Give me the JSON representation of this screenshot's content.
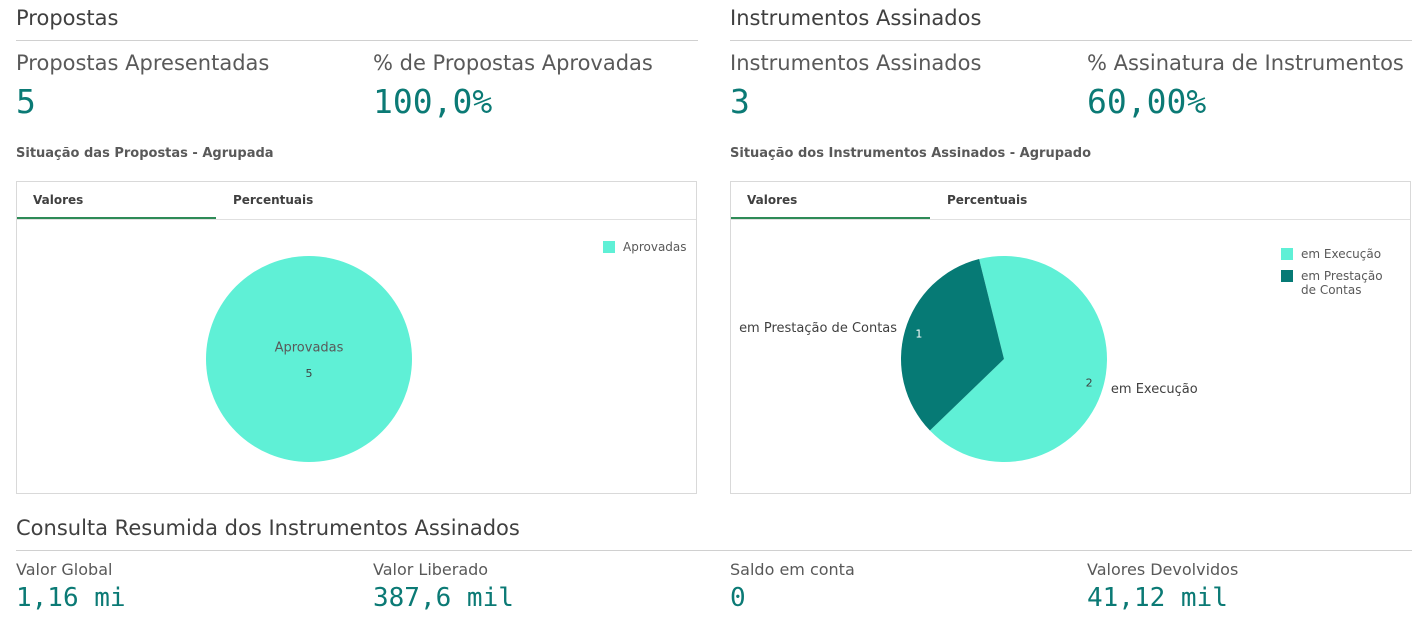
{
  "sections": [
    {
      "title": "Propostas",
      "kpis": [
        {
          "label": "Propostas Apresentadas",
          "value": "5"
        },
        {
          "label": "% de Propostas Aprovadas",
          "value": "100,0%"
        }
      ],
      "chart_title": "Situação das Propostas - Agrupada",
      "tabs": [
        "Valores",
        "Percentuais"
      ]
    },
    {
      "title": "Instrumentos Assinados",
      "kpis": [
        {
          "label": "Instrumentos Assinados",
          "value": "3"
        },
        {
          "label": "% Assinatura de Instrumentos",
          "value": "60,00%"
        }
      ],
      "chart_title": "Situação dos Instrumentos Assinados - Agrupado",
      "tabs": [
        "Valores",
        "Percentuais"
      ]
    }
  ],
  "summary": {
    "title": "Consulta Resumida dos Instrumentos Assinados",
    "items": [
      {
        "label": "Valor Global",
        "value": "1,16 mi"
      },
      {
        "label": "Valor Liberado",
        "value": "387,6 mil"
      },
      {
        "label": "Saldo em conta",
        "value": "0"
      },
      {
        "label": "Valores Devolvidos",
        "value": "41,12 mil"
      }
    ]
  },
  "chart_data": [
    {
      "type": "pie",
      "categories": [
        "Aprovadas"
      ],
      "values": [
        5
      ],
      "colors": [
        "#5ff0d6"
      ]
    },
    {
      "type": "pie",
      "categories": [
        "em Execução",
        "em Prestação de Contas"
      ],
      "values": [
        2,
        1
      ],
      "colors": [
        "#5ff0d6",
        "#067a75"
      ]
    }
  ]
}
